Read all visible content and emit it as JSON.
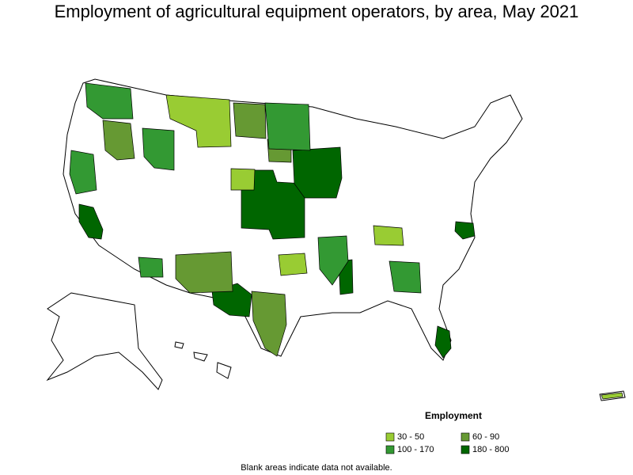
{
  "title": "Employment of agricultural equipment operators, by area, May 2021",
  "legend": {
    "title": "Employment",
    "items": [
      {
        "label": "30 - 50",
        "color": "#99cc33"
      },
      {
        "label": "60 - 90",
        "color": "#669933"
      },
      {
        "label": "100 - 170",
        "color": "#339933"
      },
      {
        "label": "180 - 800",
        "color": "#006600"
      }
    ]
  },
  "note": "Blank areas indicate data not available."
}
